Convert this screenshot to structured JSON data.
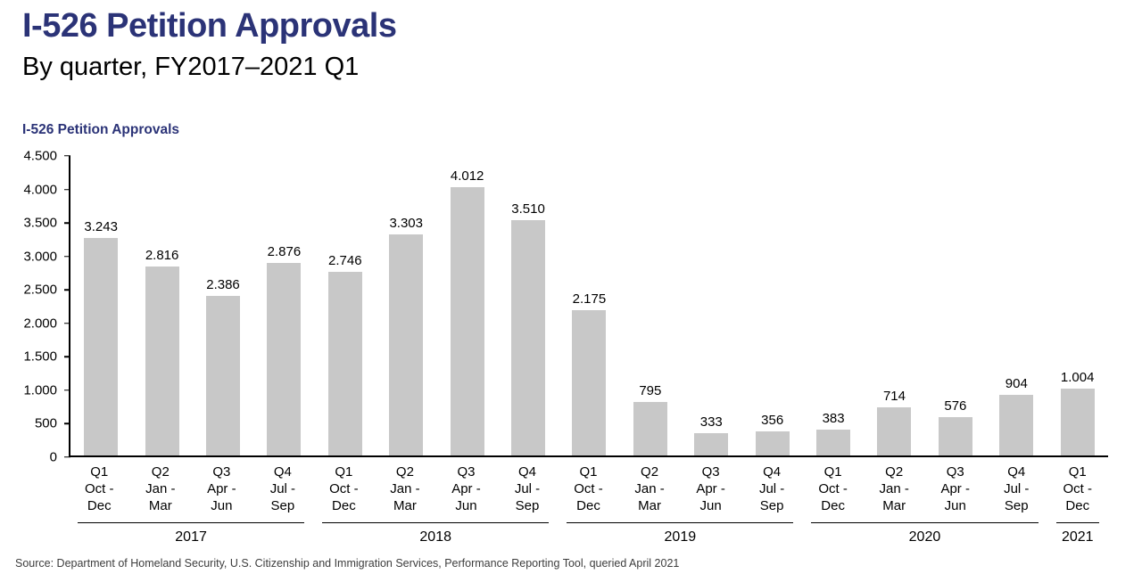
{
  "header": {
    "title": "I-526 Petition Approvals",
    "subtitle": "By quarter, FY2017–2021 Q1"
  },
  "chart_data": {
    "type": "bar",
    "title": "I-526 Petition Approvals",
    "xlabel": "",
    "ylabel": "",
    "ylim": [
      0,
      4500
    ],
    "ytick_interval": 500,
    "ytick_labels": [
      "4.500",
      "4.000",
      "3.500",
      "3.000",
      "2.500",
      "2.000",
      "1.500",
      "1.000",
      "500",
      "0"
    ],
    "grid": false,
    "legend": false,
    "bar_color": "#c8c8c8",
    "groups": [
      {
        "year": "2017",
        "quarters": [
          {
            "quarter": "Q1",
            "months_line1": "Oct -",
            "months_line2": "Dec",
            "value": 3243,
            "label": "3.243"
          },
          {
            "quarter": "Q2",
            "months_line1": "Jan -",
            "months_line2": "Mar",
            "value": 2816,
            "label": "2.816"
          },
          {
            "quarter": "Q3",
            "months_line1": "Apr -",
            "months_line2": "Jun",
            "value": 2386,
            "label": "2.386"
          },
          {
            "quarter": "Q4",
            "months_line1": "Jul -",
            "months_line2": "Sep",
            "value": 2876,
            "label": "2.876"
          }
        ]
      },
      {
        "year": "2018",
        "quarters": [
          {
            "quarter": "Q1",
            "months_line1": "Oct -",
            "months_line2": "Dec",
            "value": 2746,
            "label": "2.746"
          },
          {
            "quarter": "Q2",
            "months_line1": "Jan -",
            "months_line2": "Mar",
            "value": 3303,
            "label": "3.303"
          },
          {
            "quarter": "Q3",
            "months_line1": "Apr -",
            "months_line2": "Jun",
            "value": 4012,
            "label": "4.012"
          },
          {
            "quarter": "Q4",
            "months_line1": "Jul -",
            "months_line2": "Sep",
            "value": 3510,
            "label": "3.510"
          }
        ]
      },
      {
        "year": "2019",
        "quarters": [
          {
            "quarter": "Q1",
            "months_line1": "Oct -",
            "months_line2": "Dec",
            "value": 2175,
            "label": "2.175"
          },
          {
            "quarter": "Q2",
            "months_line1": "Jan -",
            "months_line2": "Mar",
            "value": 795,
            "label": "795"
          },
          {
            "quarter": "Q3",
            "months_line1": "Apr -",
            "months_line2": "Jun",
            "value": 333,
            "label": "333"
          },
          {
            "quarter": "Q4",
            "months_line1": "Jul -",
            "months_line2": "Sep",
            "value": 356,
            "label": "356"
          }
        ]
      },
      {
        "year": "2020",
        "quarters": [
          {
            "quarter": "Q1",
            "months_line1": "Oct -",
            "months_line2": "Dec",
            "value": 383,
            "label": "383"
          },
          {
            "quarter": "Q2",
            "months_line1": "Jan -",
            "months_line2": "Mar",
            "value": 714,
            "label": "714"
          },
          {
            "quarter": "Q3",
            "months_line1": "Apr -",
            "months_line2": "Jun",
            "value": 576,
            "label": "576"
          },
          {
            "quarter": "Q4",
            "months_line1": "Jul -",
            "months_line2": "Sep",
            "value": 904,
            "label": "904"
          }
        ]
      },
      {
        "year": "2021",
        "quarters": [
          {
            "quarter": "Q1",
            "months_line1": "Oct -",
            "months_line2": "Dec",
            "value": 1004,
            "label": "1.004"
          }
        ]
      }
    ]
  },
  "footer": {
    "source": "Source: Department of Homeland Security, U.S. Citizenship and Immigration Services, Performance Reporting Tool, queried April 2021"
  },
  "colors": {
    "accent_navy": "#2b3377",
    "bar_gray": "#c8c8c8",
    "axis_black": "#000000"
  }
}
